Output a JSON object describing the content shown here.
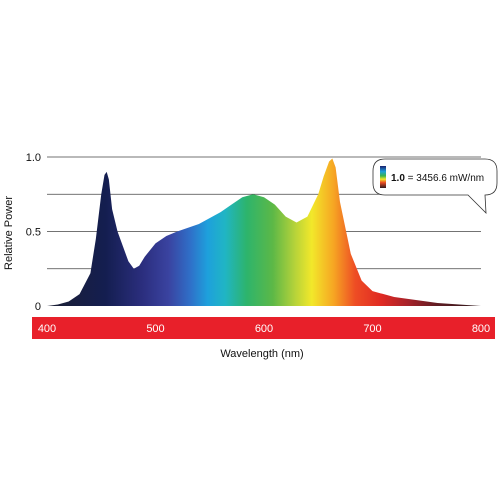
{
  "chart_data": {
    "type": "area",
    "title": "",
    "xlabel": "Wavelength (nm)",
    "ylabel": "Relative Power",
    "xlim": [
      400,
      800
    ],
    "ylim": [
      0,
      1.0
    ],
    "x_ticks": [
      "400",
      "500",
      "600",
      "700",
      "800"
    ],
    "y_ticks": [
      "0",
      "0.5",
      "1.0"
    ],
    "grid": true,
    "x_axis_band_color": "#e8202a",
    "series": [
      {
        "x": [
          400,
          410,
          420,
          430,
          440,
          445,
          450,
          453,
          455,
          457,
          460,
          465,
          470,
          475,
          480,
          485,
          490,
          500,
          510,
          520,
          540,
          560,
          570,
          580,
          590,
          600,
          610,
          620,
          630,
          640,
          650,
          655,
          660,
          663,
          666,
          670,
          680,
          690,
          700,
          720,
          740,
          760,
          780,
          800
        ],
        "values": [
          0.0,
          0.01,
          0.03,
          0.08,
          0.22,
          0.45,
          0.75,
          0.88,
          0.9,
          0.85,
          0.65,
          0.5,
          0.4,
          0.3,
          0.25,
          0.27,
          0.33,
          0.42,
          0.47,
          0.5,
          0.55,
          0.63,
          0.68,
          0.73,
          0.75,
          0.73,
          0.68,
          0.6,
          0.56,
          0.6,
          0.75,
          0.87,
          0.97,
          0.99,
          0.93,
          0.7,
          0.35,
          0.17,
          0.1,
          0.06,
          0.04,
          0.02,
          0.01,
          0.0
        ]
      }
    ]
  },
  "callout": {
    "value_bold": "1.0",
    "value_rest": " = 3456.6 mW/nm"
  }
}
